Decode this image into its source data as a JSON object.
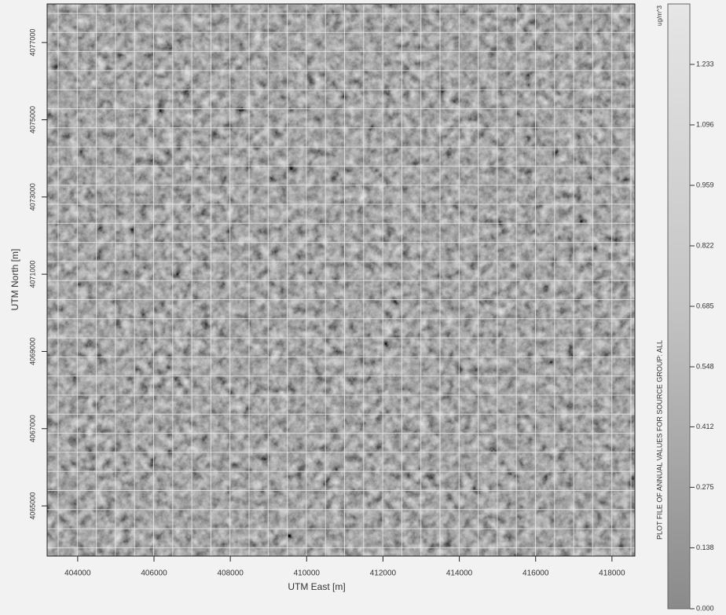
{
  "map": {
    "x_label": "UTM East [m]",
    "y_label": "UTM North [m]",
    "xlim": [
      403200,
      418600
    ],
    "ylim": [
      4063700,
      4078000
    ],
    "xticks": [
      404000,
      406000,
      408000,
      410000,
      412000,
      414000,
      416000,
      418000
    ],
    "yticks": [
      4065000,
      4067000,
      4069000,
      4071000,
      4073000,
      4075000,
      4077000
    ],
    "colorbar": {
      "title": "PLOT FILE OF ANNUAL VALUES FOR SOURCE GROUP: ALL",
      "unit": "ug/m^3",
      "clim": [
        0,
        1.37
      ],
      "ticks": [
        {
          "value": 0,
          "label": "0.000"
        },
        {
          "value": 0.138,
          "label": "0.138"
        },
        {
          "value": 0.275,
          "label": "0.275"
        },
        {
          "value": 0.412,
          "label": "0.412"
        },
        {
          "value": 0.548,
          "label": "0.548"
        },
        {
          "value": 0.685,
          "label": "0.685"
        },
        {
          "value": 0.822,
          "label": "0.822"
        },
        {
          "value": 0.959,
          "label": "0.959"
        },
        {
          "value": 1.096,
          "label": "1.096"
        },
        {
          "value": 1.233,
          "label": "1.233"
        }
      ]
    }
  }
}
